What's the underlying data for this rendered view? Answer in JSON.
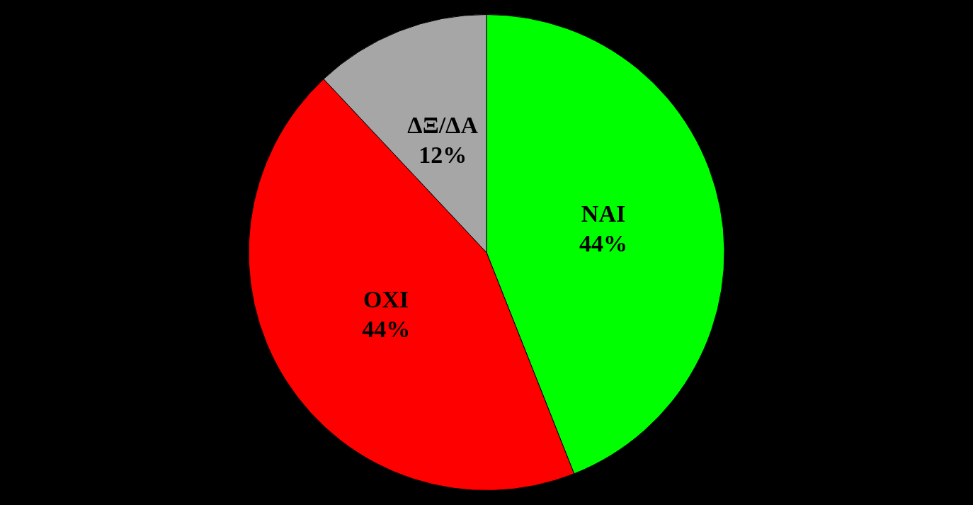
{
  "chart_data": {
    "type": "pie",
    "categories": [
      "ΝΑΙ",
      "ΟΧΙ",
      "ΔΞ/ΔΑ"
    ],
    "values": [
      44,
      44,
      12
    ],
    "colors": [
      "#00ff00",
      "#ff0000",
      "#a6a6a6"
    ],
    "value_labels": [
      "44%",
      "44%",
      "12%"
    ],
    "legend": false
  }
}
